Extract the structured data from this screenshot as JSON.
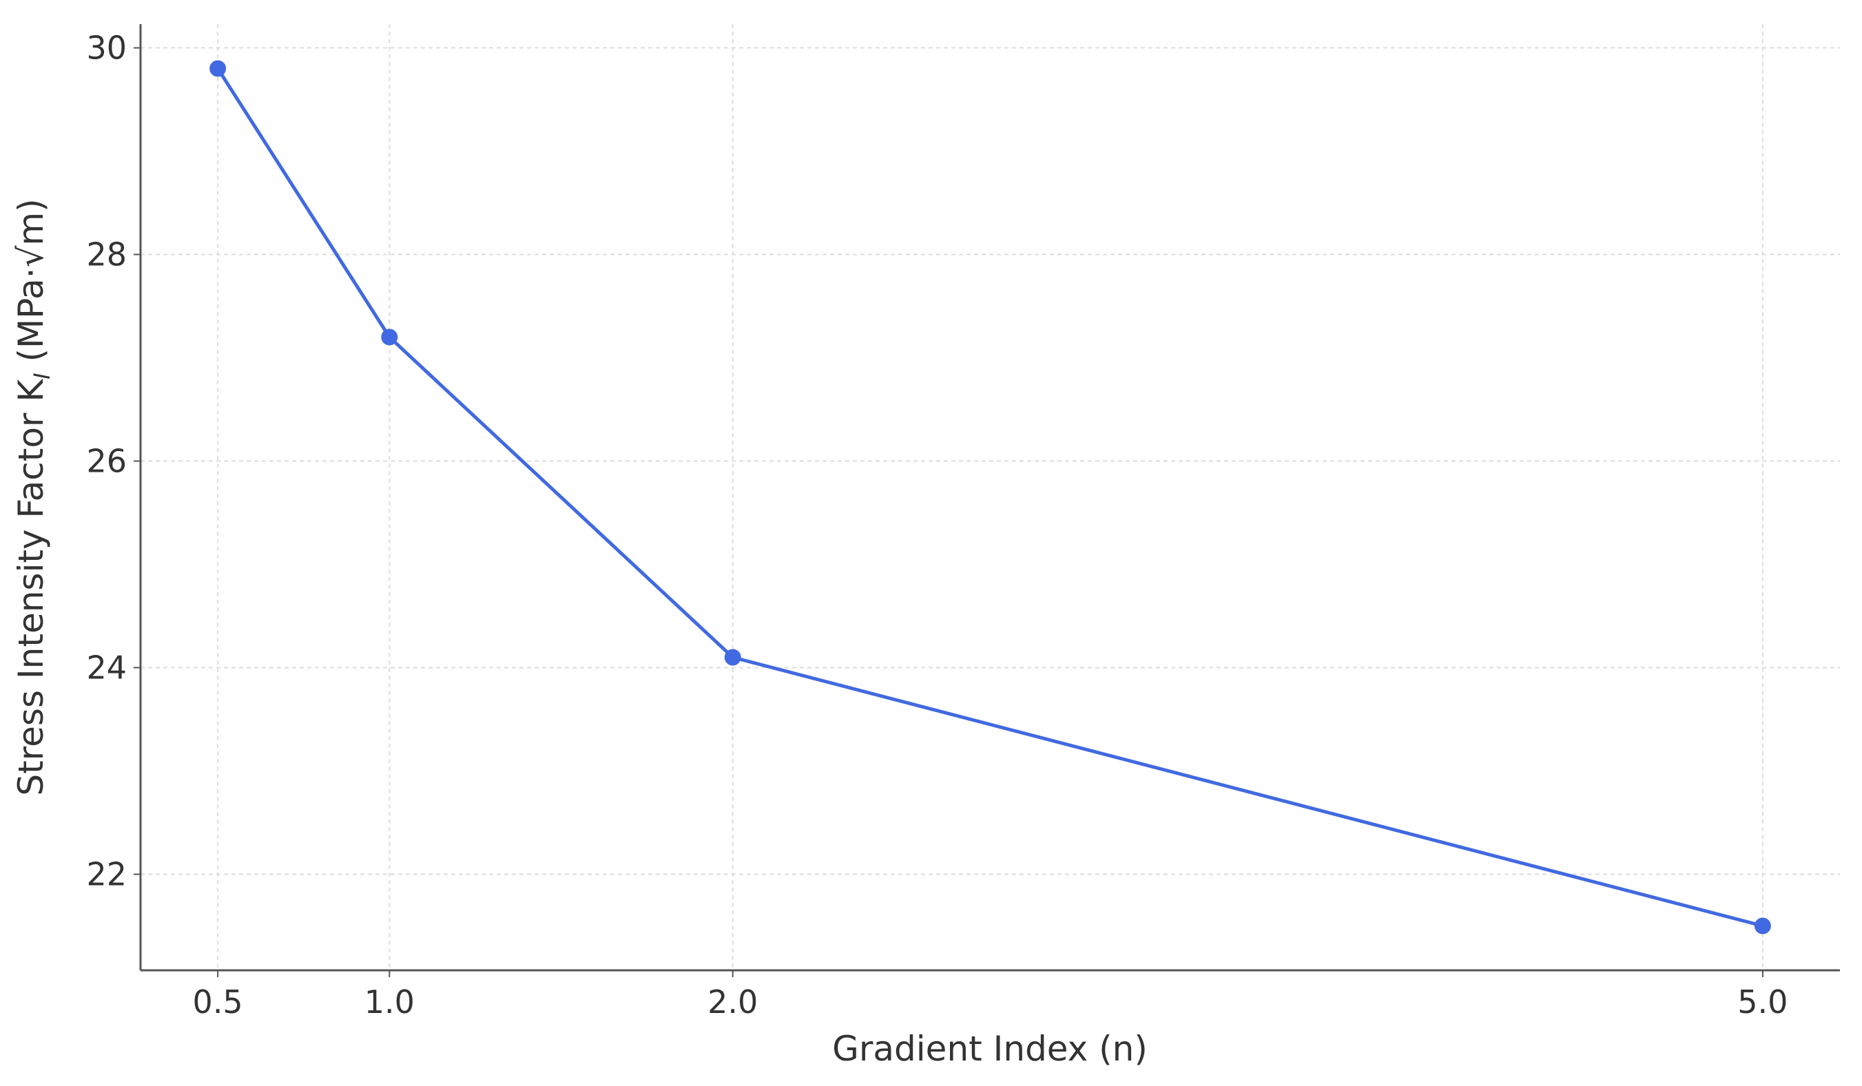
{
  "chart_data": {
    "type": "line",
    "xlabel": "Gradient Index (n)",
    "ylabel_parts": [
      "Stress Intensity Factor K",
      "I",
      " (MPa·√m)"
    ],
    "x": [
      0.5,
      1,
      2,
      5
    ],
    "series": [
      {
        "color": "#4169e1",
        "values": [
          29.8,
          27.2,
          24.1,
          21.5
        ]
      }
    ],
    "xlim": [
      0.275,
      5.225
    ],
    "ylim": [
      21.07,
      30.23
    ],
    "xticks": [
      0.5,
      {
        "value": 1,
        "label": "1.0"
      },
      {
        "value": 2,
        "label": "2.0"
      },
      {
        "value": 5,
        "label": "5.0"
      }
    ],
    "yticks": [
      22,
      24,
      26,
      28,
      30
    ],
    "grid": true,
    "markers": true
  }
}
